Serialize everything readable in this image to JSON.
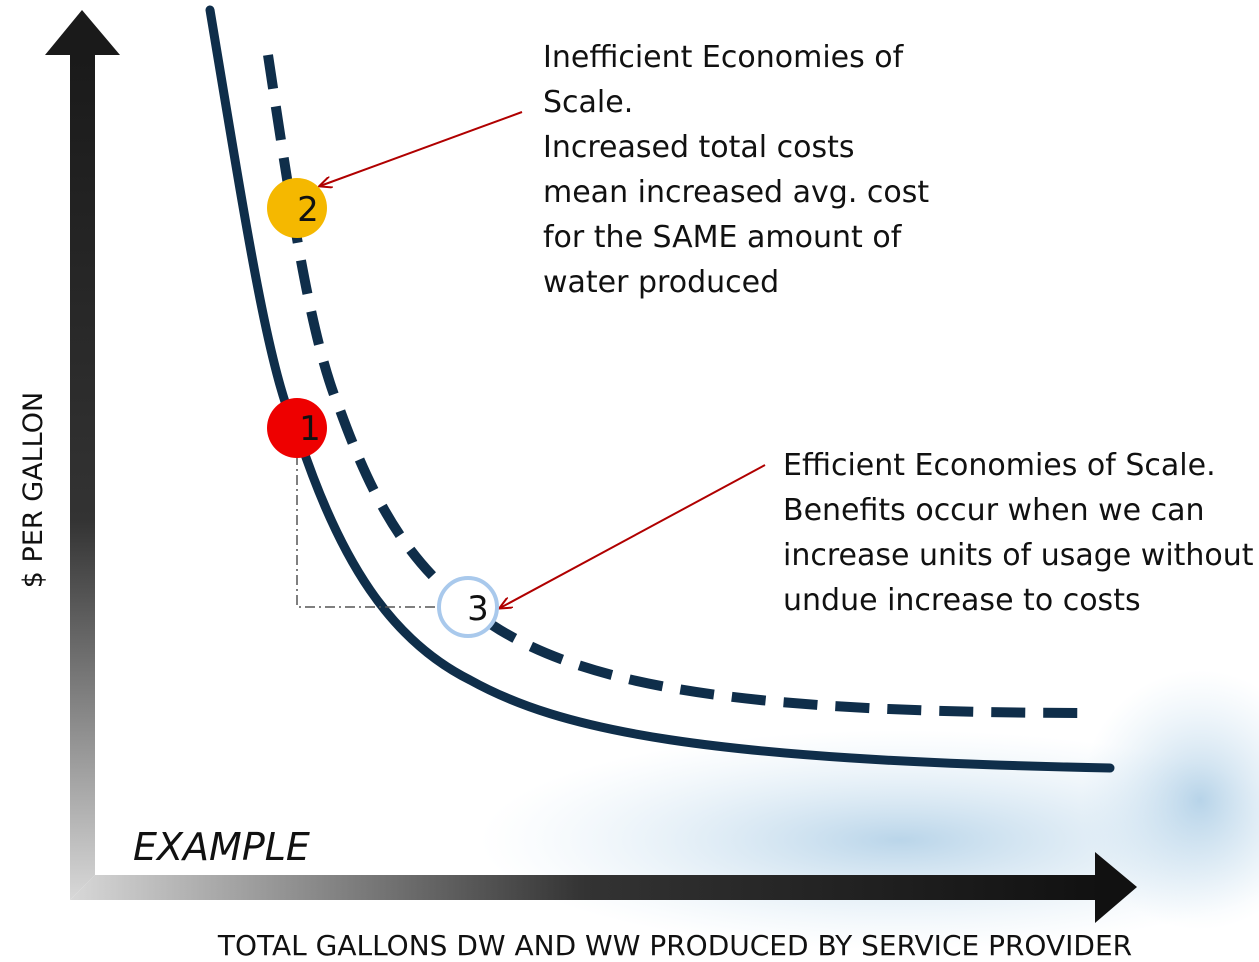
{
  "axes": {
    "y_label": "$ PER GALLON",
    "x_label": "TOTAL GALLONS DW AND WW PRODUCED BY SERVICE PROVIDER"
  },
  "watermark": "EXAMPLE",
  "points": [
    {
      "label": "1"
    },
    {
      "label": "2"
    },
    {
      "label": "3"
    }
  ],
  "annotations": [
    {
      "lines": [
        "Inefficient Economies of",
        "Scale.",
        "Increased total costs",
        "mean increased avg. cost",
        "for the SAME amount of",
        "water produced"
      ]
    },
    {
      "lines": [
        "Efficient Economies of Scale.",
        "Benefits occur when we can",
        "increase units of usage without",
        "undue increase to costs"
      ]
    }
  ]
}
